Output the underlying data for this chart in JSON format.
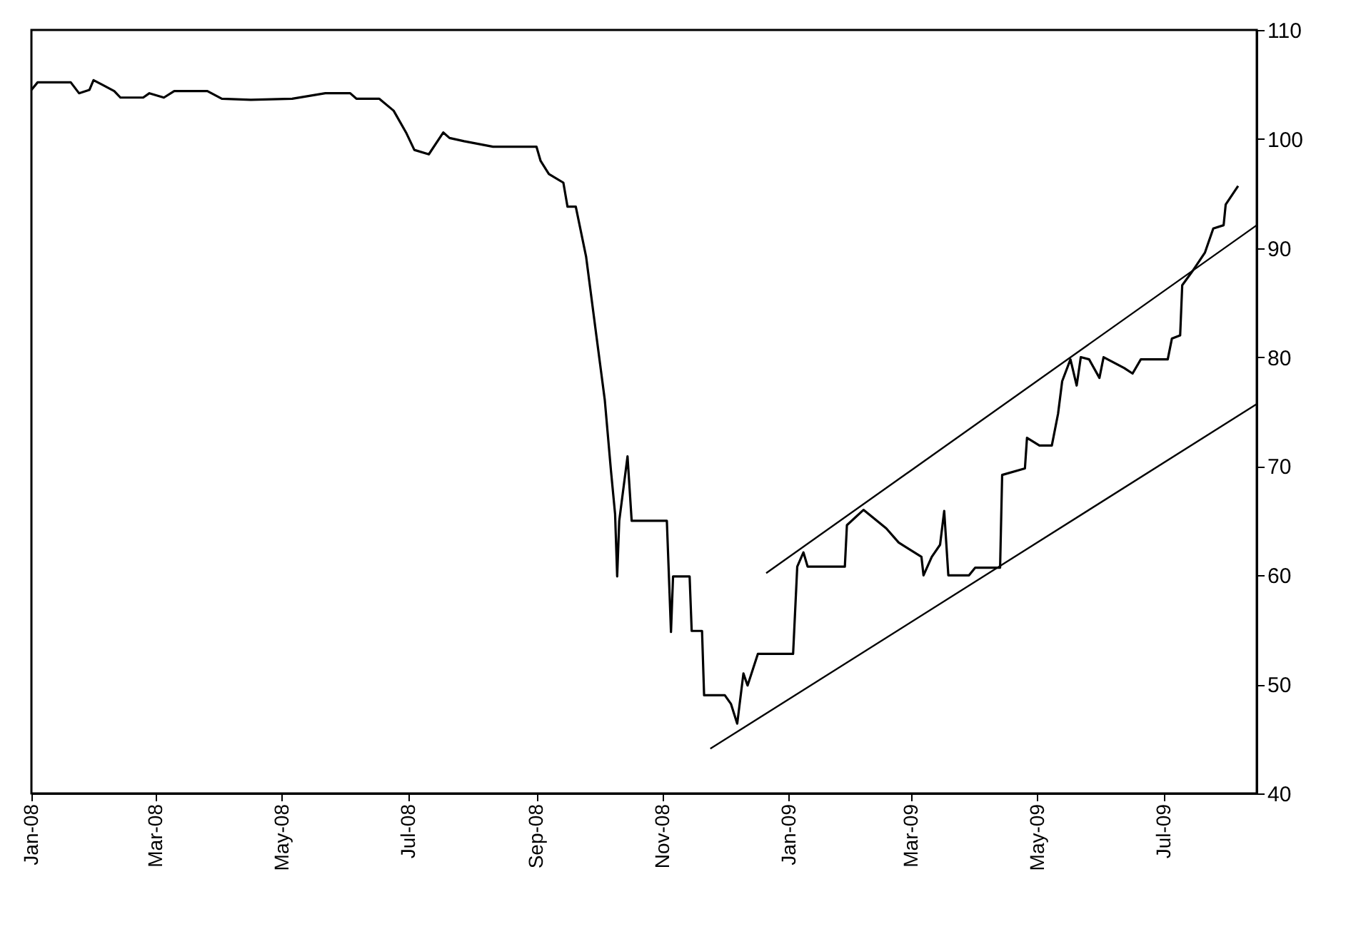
{
  "chart_data": {
    "type": "line",
    "xlim": [
      "2008-01-01",
      "2009-08-15"
    ],
    "xticks": [
      {
        "value": "2008-01-01",
        "label": "Jan-08"
      },
      {
        "value": "2008-03-01",
        "label": "Mar-08"
      },
      {
        "value": "2008-05-01",
        "label": "May-08"
      },
      {
        "value": "2008-07-01",
        "label": "Jul-08"
      },
      {
        "value": "2008-09-01",
        "label": "Sep-08"
      },
      {
        "value": "2008-11-01",
        "label": "Nov-08"
      },
      {
        "value": "2009-01-01",
        "label": "Jan-09"
      },
      {
        "value": "2009-03-01",
        "label": "Mar-09"
      },
      {
        "value": "2009-05-01",
        "label": "May-09"
      },
      {
        "value": "2009-07-01",
        "label": "Jul-09"
      }
    ],
    "ylim": [
      40,
      110
    ],
    "yticks": [
      40,
      50,
      60,
      70,
      80,
      90,
      100,
      110
    ],
    "marker": "none",
    "line_style": "solid",
    "series": [
      {
        "color": "#000000",
        "x": [
          "2008-01-01",
          "2008-01-04",
          "2008-01-20",
          "2008-01-24",
          "2008-01-29",
          "2008-01-31",
          "2008-02-04",
          "2008-02-10",
          "2008-02-13",
          "2008-02-24",
          "2008-02-27",
          "2008-03-05",
          "2008-03-10",
          "2008-03-26",
          "2008-04-02",
          "2008-04-16",
          "2008-05-06",
          "2008-05-22",
          "2008-06-03",
          "2008-06-06",
          "2008-06-17",
          "2008-06-24",
          "2008-06-30",
          "2008-07-04",
          "2008-07-11",
          "2008-07-18",
          "2008-07-21",
          "2008-07-28",
          "2008-08-11",
          "2008-09-01",
          "2008-09-03",
          "2008-09-07",
          "2008-09-14",
          "2008-09-16",
          "2008-09-20",
          "2008-09-25",
          "2008-09-30",
          "2008-10-04",
          "2008-10-07",
          "2008-10-09",
          "2008-10-10",
          "2008-10-11",
          "2008-10-15",
          "2008-10-17",
          "2008-11-03",
          "2008-11-04",
          "2008-11-05",
          "2008-11-06",
          "2008-11-14",
          "2008-11-15",
          "2008-11-20",
          "2008-11-21",
          "2008-12-01",
          "2008-12-04",
          "2008-12-07",
          "2008-12-10",
          "2008-12-12",
          "2008-12-17",
          "2009-01-03",
          "2009-01-05",
          "2009-01-08",
          "2009-01-10",
          "2009-01-28",
          "2009-01-29",
          "2009-02-06",
          "2009-02-17",
          "2009-02-23",
          "2009-03-06",
          "2009-03-07",
          "2009-03-11",
          "2009-03-15",
          "2009-03-17",
          "2009-03-19",
          "2009-03-29",
          "2009-04-01",
          "2009-04-13",
          "2009-04-14",
          "2009-04-25",
          "2009-04-26",
          "2009-05-02",
          "2009-05-08",
          "2009-05-11",
          "2009-05-13",
          "2009-05-17",
          "2009-05-20",
          "2009-05-22",
          "2009-05-26",
          "2009-05-31",
          "2009-06-02",
          "2009-06-12",
          "2009-06-16",
          "2009-06-20",
          "2009-07-03",
          "2009-07-05",
          "2009-07-09",
          "2009-07-10",
          "2009-07-15",
          "2009-07-21",
          "2009-07-25",
          "2009-07-30",
          "2009-07-31",
          "2009-08-06"
        ],
        "values": [
          104.5,
          105.2,
          105.2,
          104.2,
          104.5,
          105.4,
          105.0,
          104.4,
          103.8,
          103.8,
          104.2,
          103.8,
          104.4,
          104.4,
          103.7,
          103.6,
          103.7,
          104.2,
          104.2,
          103.7,
          103.7,
          102.6,
          100.6,
          99.0,
          98.6,
          100.6,
          100.1,
          99.8,
          99.3,
          99.3,
          98.0,
          96.8,
          96.0,
          93.8,
          93.8,
          89.2,
          81.9,
          76.1,
          69.6,
          65.6,
          59.9,
          65.0,
          70.9,
          65.0,
          65.0,
          59.9,
          54.8,
          59.9,
          59.9,
          54.9,
          54.9,
          49.0,
          49.0,
          48.2,
          46.4,
          51.0,
          49.9,
          52.8,
          52.8,
          60.8,
          62.1,
          60.8,
          60.8,
          64.6,
          66.0,
          64.3,
          63.0,
          61.7,
          60.0,
          61.7,
          62.8,
          65.9,
          60.0,
          60.0,
          60.7,
          60.7,
          69.2,
          69.8,
          72.6,
          71.9,
          71.9,
          74.8,
          77.8,
          79.8,
          77.4,
          80.0,
          79.8,
          78.1,
          80.0,
          79.0,
          78.5,
          79.8,
          79.8,
          81.7,
          82.0,
          86.6,
          87.9,
          89.6,
          91.8,
          92.1,
          94.0,
          95.7
        ]
      },
      {
        "color": "#000000",
        "x": [
          "2008-12-21",
          "2009-08-15"
        ],
        "values": [
          60.2,
          92.1
        ]
      },
      {
        "color": "#000000",
        "x": [
          "2008-11-24",
          "2009-08-15"
        ],
        "values": [
          44.1,
          75.7
        ]
      }
    ]
  }
}
